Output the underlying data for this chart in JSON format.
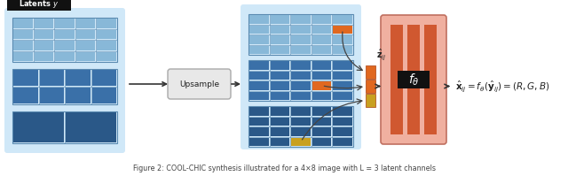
{
  "bg_color": "#ffffff",
  "grid_bg": "#d0e8f8",
  "grid_border": "#5a8ab0",
  "cell_color_top": "#88b8d8",
  "cell_color_mid": "#3a70a8",
  "cell_color_bot": "#2a5888",
  "highlight_orange": "#e06820",
  "highlight_yellow": "#c8a020",
  "upsample_box_color": "#e8e8e8",
  "upsample_box_border": "#aaaaaa",
  "network_bg": "#f0b0a0",
  "network_bar_color": "#d05830",
  "network_border": "#c07060",
  "arrow_color": "#333333",
  "caption": "Figure 2: COOL-CHIC synthesis illustrated for a 4×8 image with L = 3 latent channels",
  "latent_label": "Latents $\\hat{y}$",
  "z_hat_label": "$\\hat{\\mathbf{z}}_{ij}$",
  "equation": "$\\hat{\\mathbf{x}}_{ij} = f_\\theta(\\hat{\\mathbf{y}}_{ij}) = (R, G, B)$",
  "f_theta": "$f_\\theta$"
}
